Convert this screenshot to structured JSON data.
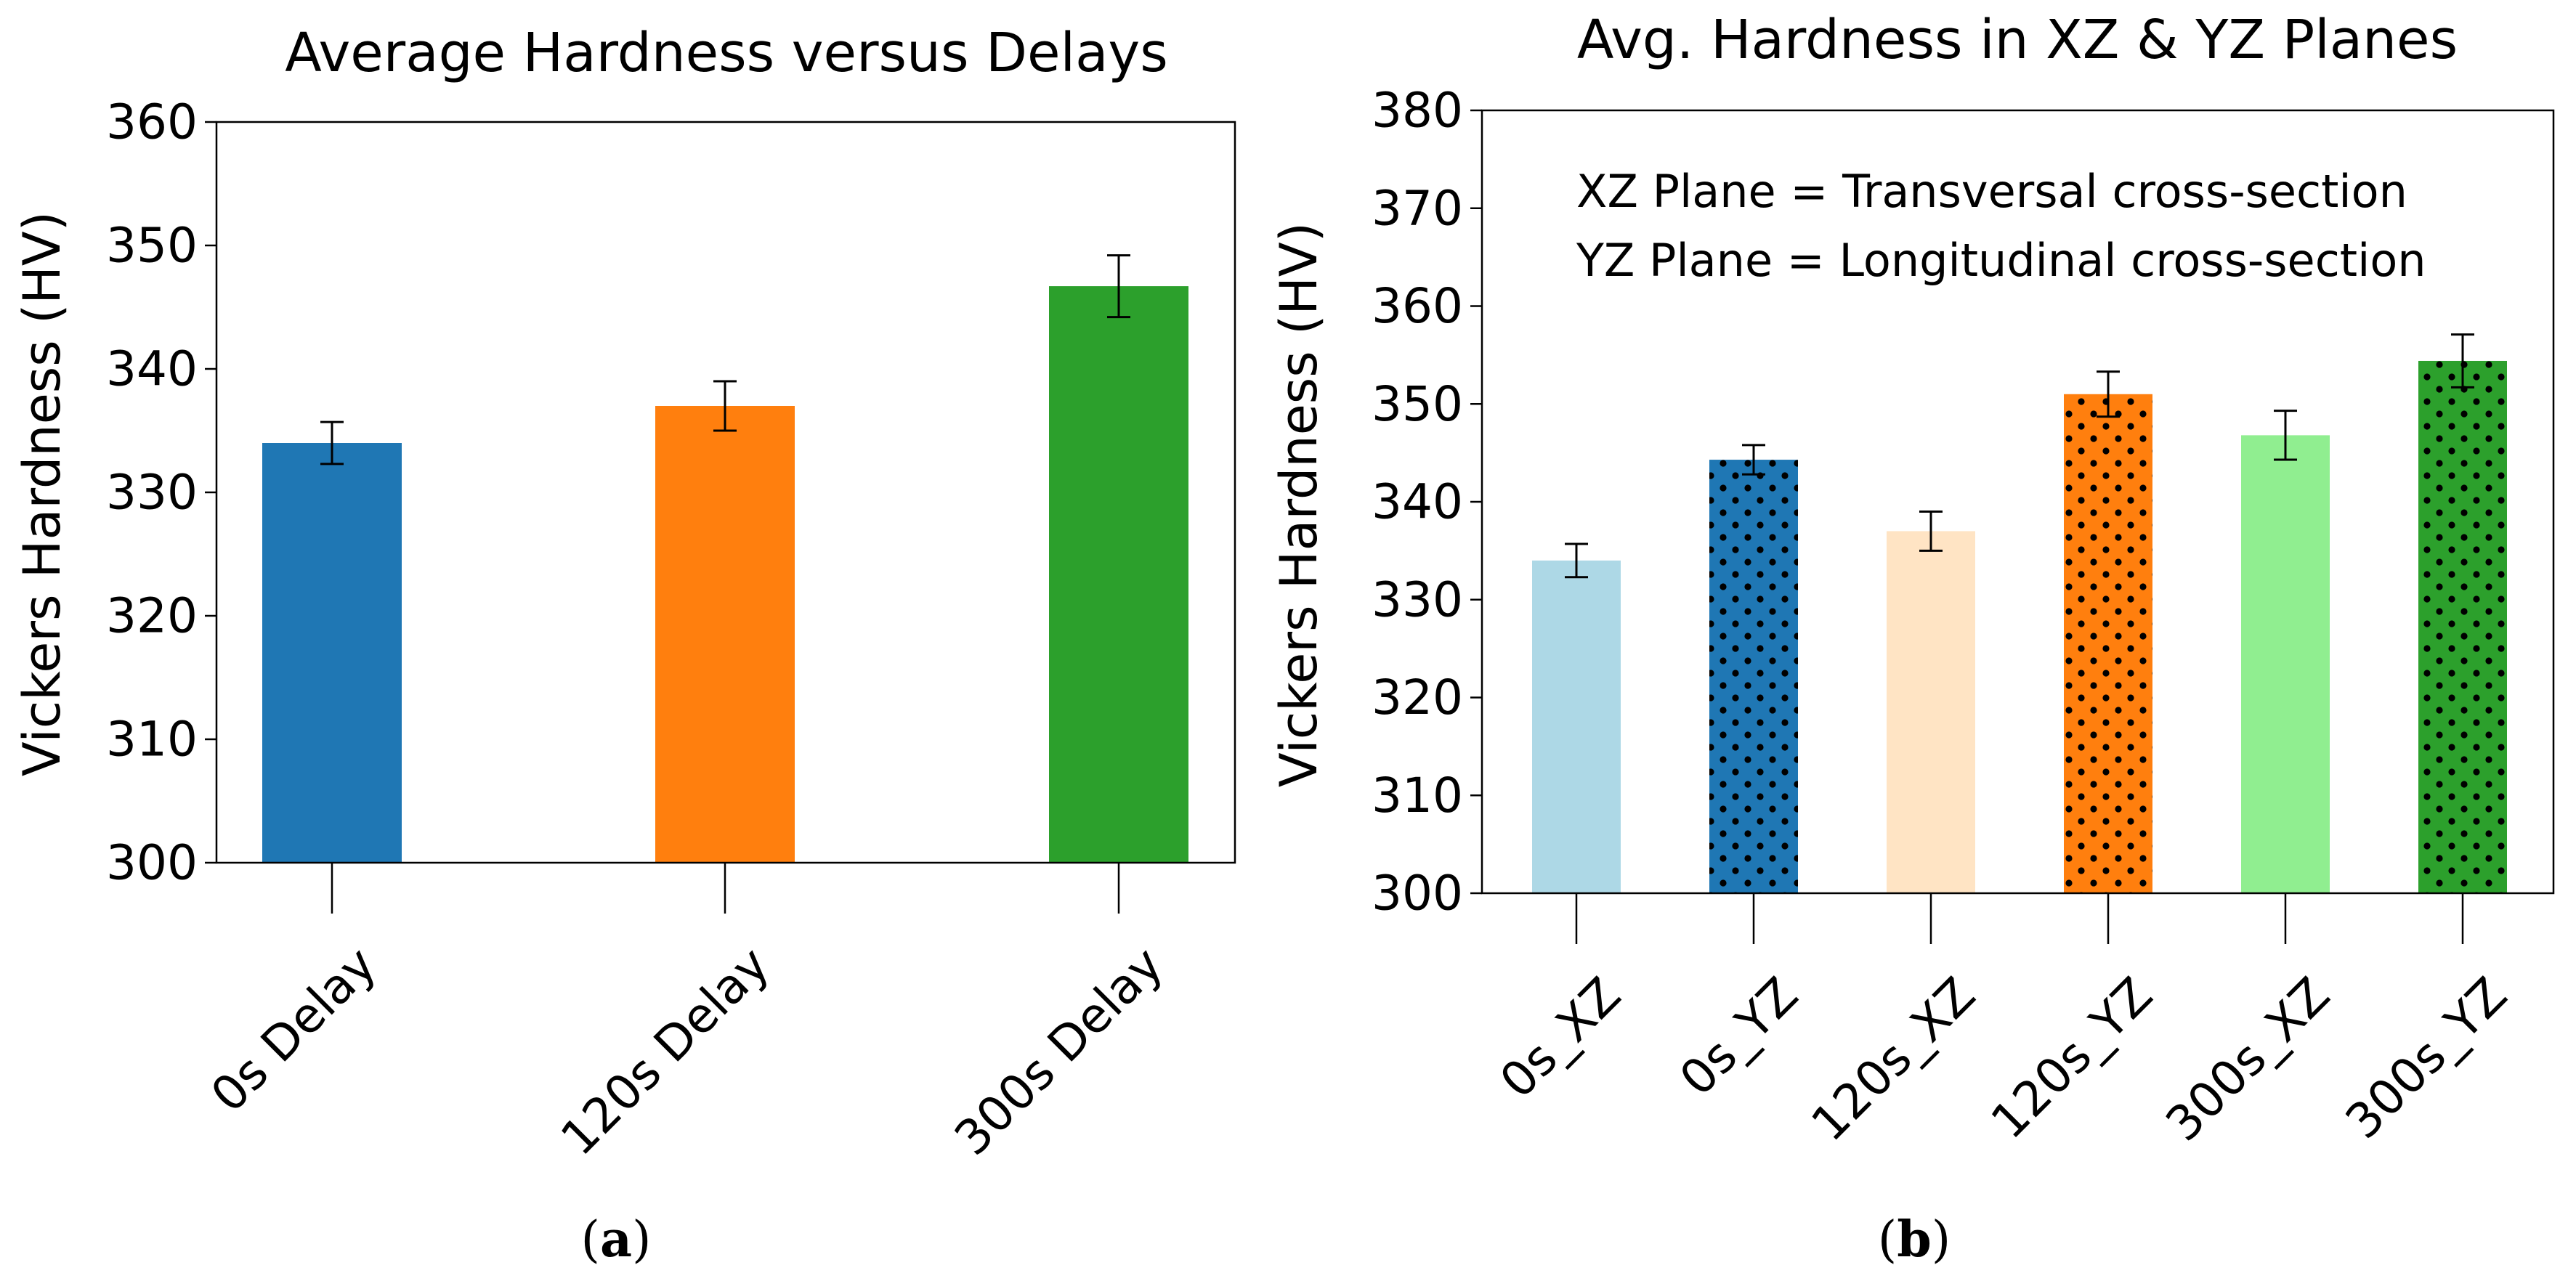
{
  "chart_data": [
    {
      "type": "bar",
      "title": "Average Hardness versus Delays",
      "xlabel": "",
      "ylabel": "Vickers Hardness (HV)",
      "categories": [
        "0s Delay",
        "120s Delay",
        "300s Delay"
      ],
      "values": [
        334,
        337,
        346.7
      ],
      "errors": [
        1.7,
        2.0,
        2.5
      ],
      "colors": [
        "#1f77b4",
        "#ff7f0e",
        "#2ca02c"
      ],
      "hatched": [
        false,
        false,
        false
      ],
      "ylim": [
        300,
        360
      ],
      "yticks": [
        300,
        310,
        320,
        330,
        340,
        350,
        360
      ],
      "annotations": [],
      "caption_label": "a"
    },
    {
      "type": "bar",
      "title": "Avg. Hardness in XZ & YZ Planes",
      "xlabel": "",
      "ylabel": "Vickers Hardness (HV)",
      "categories": [
        "0s_XZ",
        "0s_YZ",
        "120s_XZ",
        "120s_YZ",
        "300s_XZ",
        "300s_YZ"
      ],
      "values": [
        334,
        344.3,
        337,
        351,
        346.8,
        354.4
      ],
      "errors": [
        1.7,
        1.5,
        2.0,
        2.3,
        2.5,
        2.7
      ],
      "colors": [
        "#add8e6",
        "#1f77b4",
        "#ffe4c4",
        "#ff7f0e",
        "#90ee90",
        "#2ca02c"
      ],
      "hatched": [
        false,
        true,
        false,
        true,
        false,
        true
      ],
      "ylim": [
        300,
        380
      ],
      "yticks": [
        300,
        310,
        320,
        330,
        340,
        350,
        360,
        370,
        380
      ],
      "annotations": [
        "XZ Plane = Transversal cross-section",
        "YZ Plane = Longitudinal cross-section"
      ],
      "caption_label": "b"
    }
  ]
}
